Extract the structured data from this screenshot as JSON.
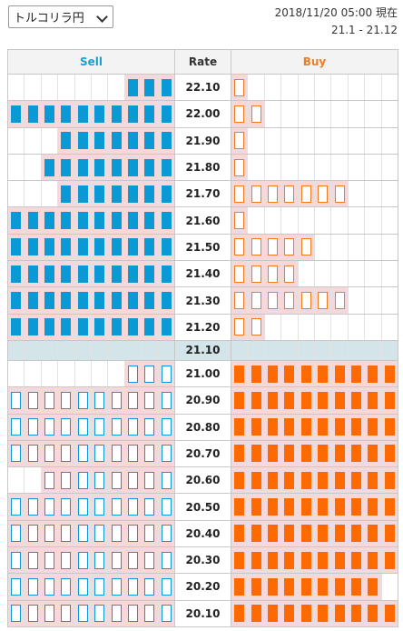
{
  "pair_select": {
    "value": "トルコリラ円"
  },
  "timestamp": "2018/11/20 05:00 現在",
  "range": "21.1 - 21.12",
  "headers": {
    "sell": "Sell",
    "rate": "Rate",
    "buy": "Buy"
  },
  "colors": {
    "sell": "#0999d5",
    "buy": "#ff6a00",
    "current_row": "#d4e5ea"
  },
  "rows": [
    {
      "rate": "22.10",
      "sell": 3,
      "sell_style": "filled",
      "buy": 1,
      "buy_style": "outline"
    },
    {
      "rate": "22.00",
      "sell": 10,
      "sell_style": "filled",
      "buy": 2,
      "buy_style": "outline"
    },
    {
      "rate": "21.90",
      "sell": 7,
      "sell_style": "filled",
      "buy": 1,
      "buy_style": "outline"
    },
    {
      "rate": "21.80",
      "sell": 8,
      "sell_style": "filled",
      "buy": 1,
      "buy_style": "outline"
    },
    {
      "rate": "21.70",
      "sell": 7,
      "sell_style": "filled",
      "buy": 7,
      "buy_style": "outline"
    },
    {
      "rate": "21.60",
      "sell": 10,
      "sell_style": "filled",
      "buy": 1,
      "buy_style": "outline"
    },
    {
      "rate": "21.50",
      "sell": 10,
      "sell_style": "filled",
      "buy": 5,
      "buy_style": "outline"
    },
    {
      "rate": "21.40",
      "sell": 10,
      "sell_style": "filled",
      "buy": 4,
      "buy_style": "outline"
    },
    {
      "rate": "21.30",
      "sell": 10,
      "sell_style": "filled",
      "buy": 7,
      "buy_style": "outline"
    },
    {
      "rate": "21.20",
      "sell": 10,
      "sell_style": "filled",
      "buy": 2,
      "buy_style": "outline"
    },
    {
      "rate": "21.10",
      "sell": 0,
      "sell_style": "none",
      "buy": 0,
      "buy_style": "none",
      "current": true
    },
    {
      "rate": "21.00",
      "sell": 3,
      "sell_style": "outline",
      "buy": 10,
      "buy_style": "filled"
    },
    {
      "rate": "20.90",
      "sell": 10,
      "sell_style": "outline",
      "buy": 10,
      "buy_style": "filled"
    },
    {
      "rate": "20.80",
      "sell": 10,
      "sell_style": "outline",
      "buy": 10,
      "buy_style": "filled"
    },
    {
      "rate": "20.70",
      "sell": 10,
      "sell_style": "outline",
      "buy": 10,
      "buy_style": "filled"
    },
    {
      "rate": "20.60",
      "sell": 8,
      "sell_style": "outline",
      "buy": 10,
      "buy_style": "filled"
    },
    {
      "rate": "20.50",
      "sell": 10,
      "sell_style": "outline",
      "buy": 10,
      "buy_style": "filled"
    },
    {
      "rate": "20.40",
      "sell": 10,
      "sell_style": "outline",
      "buy": 10,
      "buy_style": "filled"
    },
    {
      "rate": "20.30",
      "sell": 10,
      "sell_style": "outline",
      "buy": 10,
      "buy_style": "filled"
    },
    {
      "rate": "20.20",
      "sell": 10,
      "sell_style": "outline",
      "buy": 9,
      "buy_style": "filled"
    },
    {
      "rate": "20.10",
      "sell": 10,
      "sell_style": "outline",
      "buy": 10,
      "buy_style": "filled"
    }
  ]
}
